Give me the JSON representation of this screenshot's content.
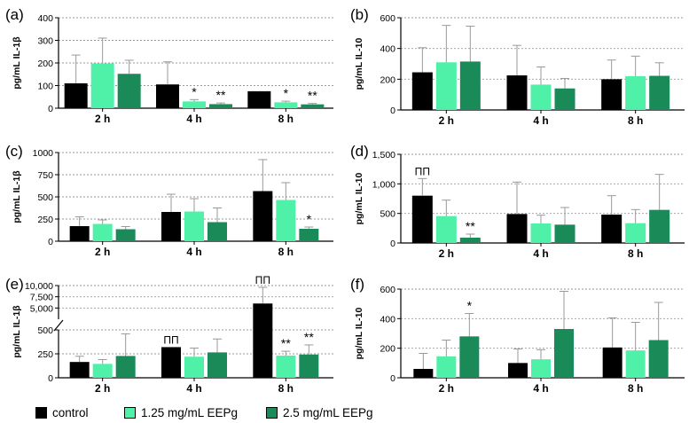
{
  "legend": {
    "items": [
      {
        "label": "control",
        "color": "#000000"
      },
      {
        "label": "1.25 mg/mL EEPg",
        "color": "#4ff0a8"
      },
      {
        "label": "2.5 mg/mL EEPg",
        "color": "#1a8a58"
      }
    ]
  },
  "chart_data": [
    {
      "panel": "(a)",
      "type": "bar",
      "ylabel": "pg/mL IL-1β",
      "categories": [
        "2 h",
        "4 h",
        "8 h"
      ],
      "ylim": [
        0,
        400
      ],
      "yticks": [
        0,
        100,
        200,
        300,
        400
      ],
      "series": [
        {
          "name": "control",
          "values": [
            110,
            105,
            75
          ],
          "errors": [
            125,
            100,
            0
          ]
        },
        {
          "name": "1.25 mg/mL EEPg",
          "values": [
            198,
            30,
            26
          ],
          "errors": [
            112,
            8,
            5
          ]
        },
        {
          "name": "2.5 mg/mL EEPg",
          "values": [
            152,
            18,
            17
          ],
          "errors": [
            60,
            5,
            4
          ]
        }
      ],
      "annotations": [
        {
          "category": 1,
          "series": 1,
          "text": "*"
        },
        {
          "category": 1,
          "series": 2,
          "text": "**"
        },
        {
          "category": 2,
          "series": 1,
          "text": "*"
        },
        {
          "category": 2,
          "series": 2,
          "text": "**"
        }
      ]
    },
    {
      "panel": "(b)",
      "type": "bar",
      "ylabel": "pg/mL IL-10",
      "categories": [
        "2 h",
        "4 h",
        "8 h"
      ],
      "ylim": [
        0,
        600
      ],
      "yticks": [
        0,
        200,
        400,
        600
      ],
      "series": [
        {
          "name": "control",
          "values": [
            245,
            225,
            200
          ],
          "errors": [
            160,
            195,
            125
          ]
        },
        {
          "name": "1.25 mg/mL EEPg",
          "values": [
            310,
            165,
            220
          ],
          "errors": [
            240,
            115,
            130
          ]
        },
        {
          "name": "2.5 mg/mL EEPg",
          "values": [
            315,
            140,
            222
          ],
          "errors": [
            230,
            65,
            85
          ]
        }
      ],
      "annotations": []
    },
    {
      "panel": "(c)",
      "type": "bar",
      "ylabel": "pg/mL IL-1β",
      "categories": [
        "2 h",
        "4 h",
        "8 h"
      ],
      "ylim": [
        0,
        1000
      ],
      "yticks": [
        0,
        250,
        500,
        750,
        1000
      ],
      "series": [
        {
          "name": "control",
          "values": [
            170,
            330,
            565
          ],
          "errors": [
            105,
            200,
            355
          ]
        },
        {
          "name": "1.25 mg/mL EEPg",
          "values": [
            195,
            335,
            465
          ],
          "errors": [
            45,
            145,
            195
          ]
        },
        {
          "name": "2.5 mg/mL EEPg",
          "values": [
            135,
            215,
            140
          ],
          "errors": [
            30,
            160,
            20
          ]
        }
      ],
      "annotations": [
        {
          "category": 2,
          "series": 2,
          "text": "*"
        }
      ]
    },
    {
      "panel": "(d)",
      "type": "bar",
      "ylabel": "pg/mL IL-10",
      "categories": [
        "2 h",
        "4 h",
        "8 h"
      ],
      "ylim": [
        0,
        1500
      ],
      "yticks": [
        0,
        500,
        1000,
        1500
      ],
      "ytick_labels": [
        "0",
        "500",
        "1,000",
        "1,500"
      ],
      "series": [
        {
          "name": "control",
          "values": [
            800,
            490,
            480
          ],
          "errors": [
            290,
            540,
            320
          ]
        },
        {
          "name": "1.25 mg/mL EEPg",
          "values": [
            455,
            330,
            335
          ],
          "errors": [
            270,
            140,
            230
          ]
        },
        {
          "name": "2.5 mg/mL EEPg",
          "values": [
            90,
            310,
            560
          ],
          "errors": [
            60,
            290,
            600
          ]
        }
      ],
      "annotations": [
        {
          "category": 0,
          "series": 0,
          "text": "ΠΠ"
        },
        {
          "category": 0,
          "series": 2,
          "text": "**"
        }
      ]
    },
    {
      "panel": "(e)",
      "type": "bar",
      "ylabel": "pg/mL IL-1β",
      "categories": [
        "2 h",
        "4 h",
        "8 h"
      ],
      "axis_break": true,
      "ytick_labels": [
        "0",
        "250",
        "500",
        "5,000",
        "7,500",
        "10,000"
      ],
      "series": [
        {
          "name": "control",
          "values": [
            165,
            320,
            6000
          ],
          "errors": [
            60,
            0,
            3600
          ]
        },
        {
          "name": "1.25 mg/mL EEPg",
          "values": [
            145,
            220,
            232
          ],
          "errors": [
            45,
            90,
            45
          ]
        },
        {
          "name": "2.5 mg/mL EEPg",
          "values": [
            228,
            265,
            243
          ],
          "errors": [
            230,
            140,
            100
          ]
        }
      ],
      "annotations": [
        {
          "category": 1,
          "series": 0,
          "text": "ΠΠ"
        },
        {
          "category": 2,
          "series": 0,
          "text": "ΠΠ"
        },
        {
          "category": 2,
          "series": 1,
          "text": "**"
        },
        {
          "category": 2,
          "series": 2,
          "text": "**"
        }
      ]
    },
    {
      "panel": "(f)",
      "type": "bar",
      "ylabel": "pg/mL IL-10",
      "categories": [
        "2 h",
        "4 h",
        "8 h"
      ],
      "ylim": [
        0,
        600
      ],
      "yticks": [
        0,
        200,
        400,
        600
      ],
      "series": [
        {
          "name": "control",
          "values": [
            60,
            100,
            205
          ],
          "errors": [
            105,
            95,
            200
          ]
        },
        {
          "name": "1.25 mg/mL EEPg",
          "values": [
            145,
            125,
            185
          ],
          "errors": [
            110,
            65,
            190
          ]
        },
        {
          "name": "2.5 mg/mL EEPg",
          "values": [
            280,
            330,
            255
          ],
          "errors": [
            155,
            255,
            255
          ]
        }
      ],
      "annotations": [
        {
          "category": 0,
          "series": 2,
          "text": "*"
        }
      ]
    }
  ]
}
